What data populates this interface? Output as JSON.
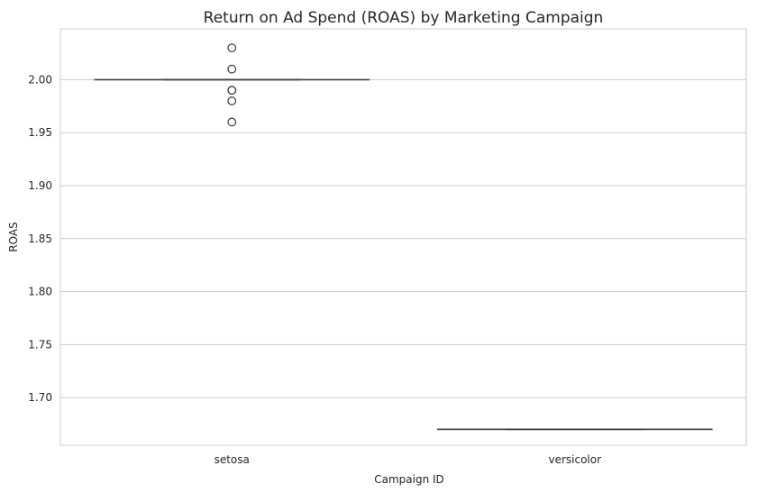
{
  "chart_data": {
    "type": "box",
    "title": "Return on Ad Spend (ROAS) by Marketing Campaign",
    "xlabel": "Campaign ID",
    "ylabel": "ROAS",
    "categories": [
      "setosa",
      "versicolor"
    ],
    "ylim": [
      1.655,
      2.048
    ],
    "yticks": [
      "1.70",
      "1.75",
      "1.80",
      "1.85",
      "1.90",
      "1.95",
      "2.00"
    ],
    "grid": true,
    "boxes": [
      {
        "category": "setosa",
        "q1": 2.0,
        "median": 2.0,
        "q3": 2.0,
        "whisker_low": 2.0,
        "whisker_high": 2.0,
        "outliers": [
          2.03,
          2.01,
          1.99,
          1.99,
          1.98,
          1.96
        ]
      },
      {
        "category": "versicolor",
        "q1": 1.67,
        "median": 1.67,
        "q3": 1.67,
        "whisker_low": 1.67,
        "whisker_high": 1.67,
        "outliers": []
      }
    ],
    "colors": {
      "box_line": "#3d3d3d",
      "grid": "#cccccc",
      "frame": "#cccccc",
      "text": "#262626"
    }
  }
}
